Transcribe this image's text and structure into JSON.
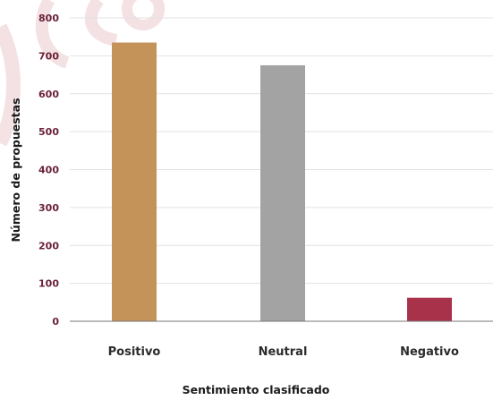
{
  "chart_data": {
    "type": "bar",
    "categories": [
      "Positivo",
      "Neutral",
      "Negativo"
    ],
    "values": [
      735,
      675,
      62
    ],
    "xlabel": "Sentimiento clasificado",
    "ylabel": "Número de propuestas",
    "ylim": [
      0,
      800
    ],
    "yticks": [
      "0",
      "100",
      "200",
      "300",
      "400",
      "500",
      "600",
      "700",
      "800"
    ],
    "grid": true,
    "colors": [
      "#C4935A",
      "#A3A3A3",
      "#A8324A"
    ]
  }
}
